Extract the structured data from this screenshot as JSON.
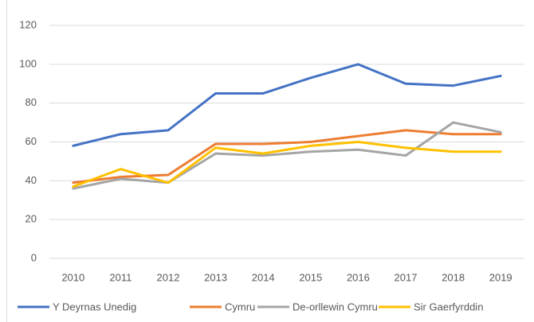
{
  "chart_data": {
    "type": "line",
    "categories": [
      "2010",
      "2011",
      "2012",
      "2013",
      "2014",
      "2015",
      "2016",
      "2017",
      "2018",
      "2019"
    ],
    "series": [
      {
        "name": "Y Deyrnas Unedig",
        "color": "#4472c4",
        "values": [
          58,
          64,
          66,
          85,
          85,
          93,
          100,
          90,
          89,
          94
        ]
      },
      {
        "name": "Cymru",
        "color": "#ed7d31",
        "values": [
          39,
          42,
          43,
          59,
          59,
          60,
          63,
          66,
          64,
          64
        ]
      },
      {
        "name": "De-orllewin Cymru",
        "color": "#a5a5a5",
        "values": [
          36,
          41,
          39,
          54,
          53,
          55,
          56,
          53,
          70,
          65
        ]
      },
      {
        "name": "Sir Gaerfyrddin",
        "color": "#ffc000",
        "values": [
          37,
          46,
          39,
          57,
          54,
          58,
          60,
          57,
          55,
          55
        ]
      }
    ],
    "ylim": [
      0,
      120
    ],
    "yticks": [
      0,
      20,
      40,
      60,
      80,
      100,
      120
    ],
    "grid": true,
    "legend": "bottom"
  }
}
